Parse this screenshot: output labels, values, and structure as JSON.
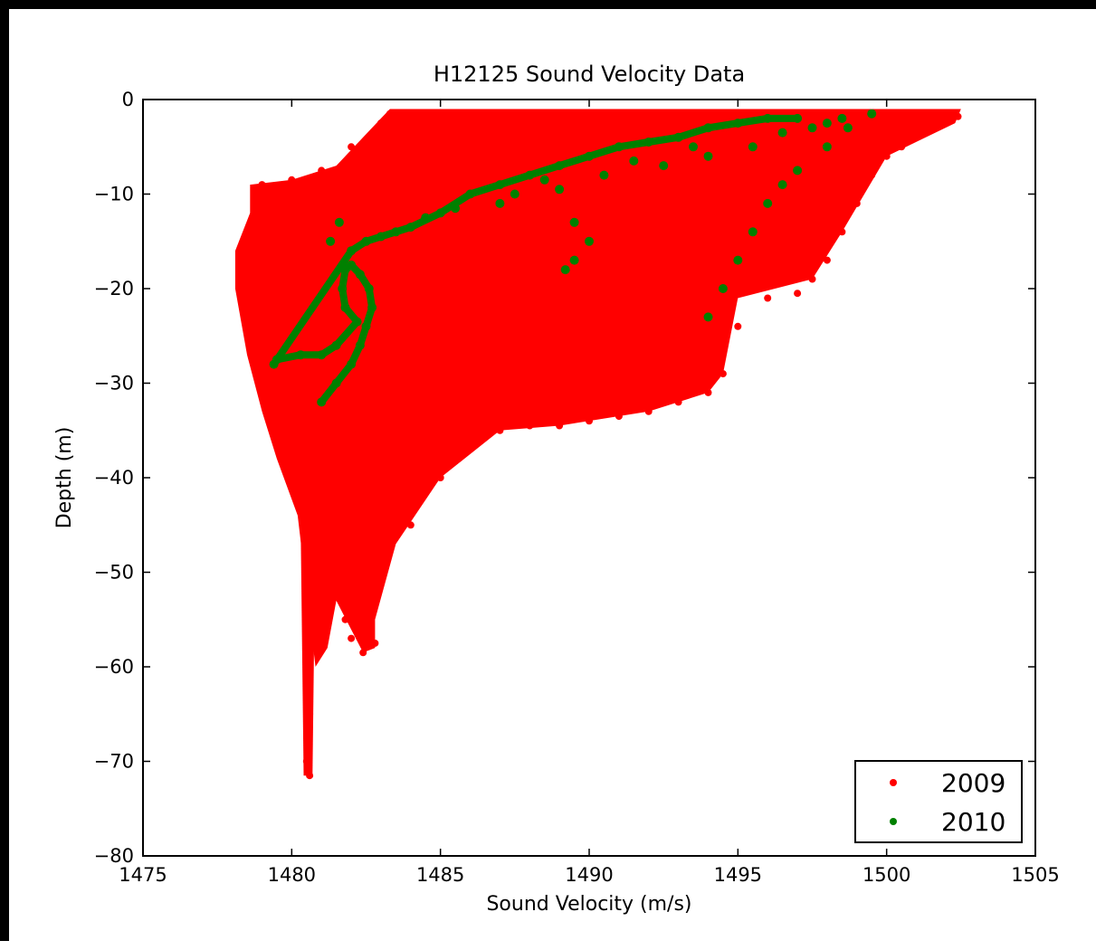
{
  "chart_data": {
    "type": "scatter",
    "title": "H12125 Sound Velocity Data",
    "xlabel": "Sound Velocity (m/s)",
    "ylabel": "Depth (m)",
    "xlim": [
      1475,
      1505
    ],
    "ylim": [
      -80,
      0
    ],
    "x_ticks": [
      1475,
      1480,
      1485,
      1490,
      1495,
      1500,
      1505
    ],
    "y_ticks": [
      0,
      -10,
      -20,
      -30,
      -40,
      -50,
      -60,
      -70,
      -80
    ],
    "x_tick_labels": [
      "1475",
      "1480",
      "1485",
      "1490",
      "1495",
      "1500",
      "1505"
    ],
    "y_tick_labels": [
      "0",
      "−10",
      "−20",
      "−30",
      "−40",
      "−50",
      "−60",
      "−70",
      "−80"
    ],
    "grid": false,
    "legend_position": "lower-right",
    "series": [
      {
        "name": "2009",
        "color": "#ff0000",
        "points": [
          [
            1478.3,
            -16
          ],
          [
            1478.5,
            -20
          ],
          [
            1478.8,
            -25
          ],
          [
            1479.2,
            -30
          ],
          [
            1479.6,
            -35
          ],
          [
            1480.2,
            -40
          ],
          [
            1480.4,
            -43
          ],
          [
            1480.5,
            -50
          ],
          [
            1480.6,
            -55
          ],
          [
            1480.5,
            -60
          ],
          [
            1480.6,
            -65
          ],
          [
            1480.5,
            -70
          ],
          [
            1480.6,
            -71.5
          ],
          [
            1481.0,
            -45
          ],
          [
            1481.5,
            -50
          ],
          [
            1481.8,
            -55
          ],
          [
            1482.0,
            -57
          ],
          [
            1482.4,
            -58.5
          ],
          [
            1482.0,
            -50
          ],
          [
            1482.6,
            -55
          ],
          [
            1482.8,
            -57.5
          ],
          [
            1483.2,
            -47
          ],
          [
            1484.0,
            -45
          ],
          [
            1485.0,
            -40
          ],
          [
            1486.0,
            -37
          ],
          [
            1487.0,
            -35
          ],
          [
            1488.0,
            -34.5
          ],
          [
            1489.0,
            -34.5
          ],
          [
            1490.0,
            -34
          ],
          [
            1491.0,
            -33.5
          ],
          [
            1492.0,
            -33
          ],
          [
            1493.0,
            -32
          ],
          [
            1494.0,
            -31
          ],
          [
            1494.5,
            -29
          ],
          [
            1495.0,
            -24
          ],
          [
            1496.0,
            -21
          ],
          [
            1497.0,
            -20.5
          ],
          [
            1497.5,
            -19
          ],
          [
            1498.0,
            -17
          ],
          [
            1498.5,
            -14
          ],
          [
            1499.0,
            -11
          ],
          [
            1499.5,
            -8
          ],
          [
            1500.0,
            -6
          ],
          [
            1500.5,
            -5
          ],
          [
            1501.0,
            -4
          ],
          [
            1501.5,
            -3
          ],
          [
            1502.0,
            -2.5
          ],
          [
            1502.4,
            -1.8
          ],
          [
            1483.3,
            -1.5
          ],
          [
            1485.0,
            -1.5
          ],
          [
            1490.0,
            -1.5
          ],
          [
            1495.0,
            -1.5
          ],
          [
            1500.0,
            -1.5
          ],
          [
            1479.0,
            -9
          ],
          [
            1480.0,
            -8.5
          ],
          [
            1481.0,
            -7.5
          ],
          [
            1482.0,
            -5
          ],
          [
            1483.0,
            -2.5
          ],
          [
            1478.8,
            -12
          ],
          [
            1479.5,
            -18
          ],
          [
            1481.0,
            -30
          ],
          [
            1482.0,
            -35
          ],
          [
            1483.0,
            -38
          ],
          [
            1484.0,
            -35
          ],
          [
            1485.0,
            -30
          ],
          [
            1486.0,
            -27
          ],
          [
            1487.0,
            -25
          ],
          [
            1488.0,
            -22
          ],
          [
            1489.0,
            -20
          ],
          [
            1490.0,
            -18
          ],
          [
            1491.0,
            -16
          ],
          [
            1492.0,
            -14
          ],
          [
            1493.0,
            -12
          ],
          [
            1494.0,
            -10
          ],
          [
            1495.0,
            -8
          ],
          [
            1496.0,
            -6
          ],
          [
            1497.0,
            -4
          ],
          [
            1498.0,
            -3
          ],
          [
            1499.0,
            -2
          ]
        ]
      },
      {
        "name": "2010",
        "color": "#008000",
        "points": [
          [
            1481.0,
            -32
          ],
          [
            1481.5,
            -30
          ],
          [
            1482.0,
            -28
          ],
          [
            1482.3,
            -26
          ],
          [
            1482.5,
            -24
          ],
          [
            1482.7,
            -22
          ],
          [
            1482.6,
            -20
          ],
          [
            1482.3,
            -18.5
          ],
          [
            1482.0,
            -17.5
          ],
          [
            1481.8,
            -18
          ],
          [
            1481.7,
            -20
          ],
          [
            1481.8,
            -22
          ],
          [
            1482.2,
            -23.5
          ],
          [
            1481.5,
            -26
          ],
          [
            1481.0,
            -27
          ],
          [
            1480.3,
            -27
          ],
          [
            1479.5,
            -27.5
          ],
          [
            1479.4,
            -28
          ],
          [
            1482.0,
            -16
          ],
          [
            1482.5,
            -15
          ],
          [
            1483.0,
            -14.5
          ],
          [
            1483.5,
            -14
          ],
          [
            1484.0,
            -13.5
          ],
          [
            1485.0,
            -12
          ],
          [
            1486.0,
            -10
          ],
          [
            1487.0,
            -9
          ],
          [
            1488.0,
            -8
          ],
          [
            1489.0,
            -7
          ],
          [
            1490.0,
            -6
          ],
          [
            1491.0,
            -5
          ],
          [
            1492.0,
            -4.5
          ],
          [
            1493.0,
            -4
          ],
          [
            1494.0,
            -3
          ],
          [
            1495.0,
            -2.5
          ],
          [
            1496.0,
            -2
          ],
          [
            1497.0,
            -2
          ],
          [
            1487.0,
            -11
          ],
          [
            1489.0,
            -9.5
          ],
          [
            1490.5,
            -8
          ],
          [
            1492.5,
            -7
          ],
          [
            1494.0,
            -6
          ],
          [
            1495.5,
            -5
          ],
          [
            1497.5,
            -3
          ],
          [
            1498.5,
            -2
          ],
          [
            1499.5,
            -1.5
          ],
          [
            1489.5,
            -13
          ],
          [
            1490.0,
            -15
          ],
          [
            1489.5,
            -17
          ],
          [
            1489.2,
            -18
          ],
          [
            1494.0,
            -23
          ],
          [
            1494.5,
            -20
          ],
          [
            1495.0,
            -17
          ],
          [
            1495.5,
            -14
          ],
          [
            1496.0,
            -11
          ],
          [
            1496.5,
            -9
          ],
          [
            1497.0,
            -7.5
          ],
          [
            1498.0,
            -5
          ],
          [
            1498.7,
            -3
          ],
          [
            1481.3,
            -15
          ],
          [
            1481.6,
            -13
          ],
          [
            1484.5,
            -12.5
          ],
          [
            1485.5,
            -11.5
          ],
          [
            1487.5,
            -10
          ],
          [
            1488.5,
            -8.5
          ],
          [
            1491.5,
            -6.5
          ],
          [
            1493.5,
            -5
          ],
          [
            1496.5,
            -3.5
          ],
          [
            1498.0,
            -2.5
          ]
        ]
      }
    ]
  }
}
